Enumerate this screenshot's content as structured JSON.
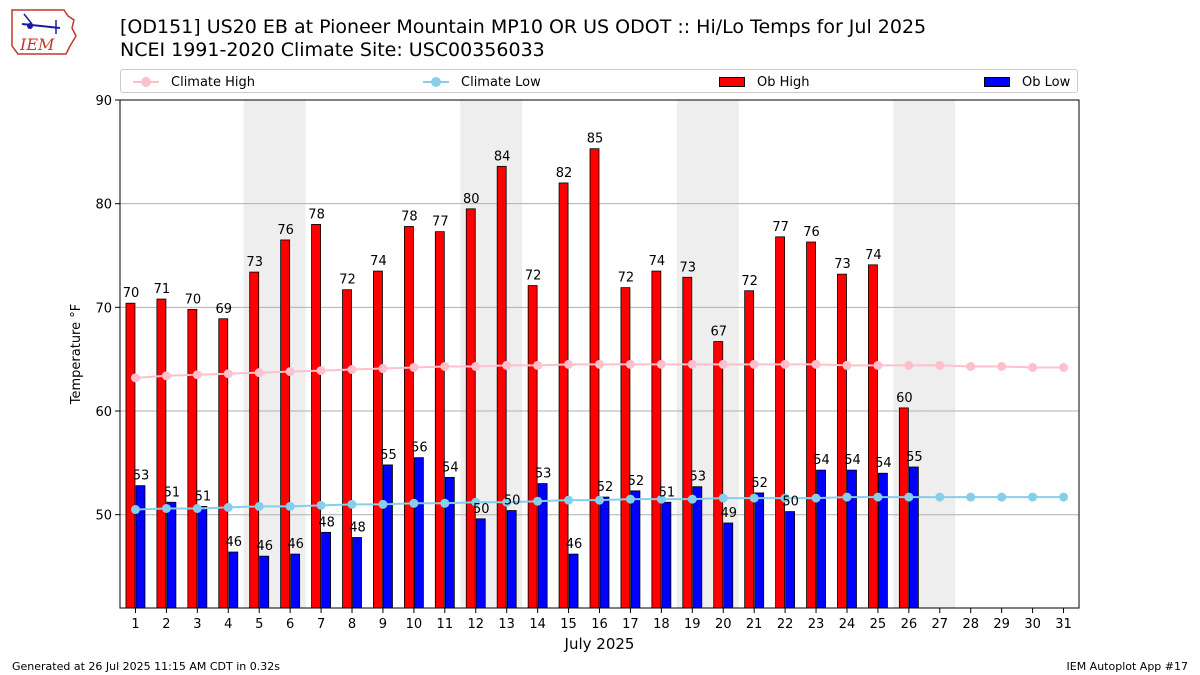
{
  "brand": {
    "logo_text": "IEM"
  },
  "chart_data": {
    "type": "bar",
    "title": "[OD151] US20 EB at Pioneer Mountain MP10 OR US ODOT :: Hi/Lo Temps for Jul 2025",
    "subtitle": "NCEI 1991-2020 Climate Site: USC00356033",
    "xlabel": "July 2025",
    "ylabel": "Temperature °F",
    "ylim": [
      41,
      90
    ],
    "yticks": [
      50,
      60,
      70,
      80,
      90
    ],
    "grid": true,
    "legend_placement": "top",
    "categories": [
      "1",
      "2",
      "3",
      "4",
      "5",
      "6",
      "7",
      "8",
      "9",
      "10",
      "11",
      "12",
      "13",
      "14",
      "15",
      "16",
      "17",
      "18",
      "19",
      "20",
      "21",
      "22",
      "23",
      "24",
      "25",
      "26",
      "27",
      "28",
      "29",
      "30",
      "31"
    ],
    "weekend_days": [
      5,
      6,
      12,
      13,
      19,
      20,
      26,
      27
    ],
    "series": [
      {
        "name": "Climate High",
        "kind": "line",
        "color": "#ffc0cb",
        "values": [
          63.2,
          63.4,
          63.5,
          63.6,
          63.7,
          63.8,
          63.9,
          64.0,
          64.1,
          64.2,
          64.3,
          64.3,
          64.4,
          64.4,
          64.5,
          64.5,
          64.5,
          64.5,
          64.5,
          64.5,
          64.5,
          64.5,
          64.5,
          64.4,
          64.4,
          64.4,
          64.4,
          64.3,
          64.3,
          64.2,
          64.2
        ]
      },
      {
        "name": "Climate Low",
        "kind": "line",
        "color": "#87ceeb",
        "values": [
          50.5,
          50.6,
          50.6,
          50.7,
          50.8,
          50.8,
          50.9,
          51.0,
          51.0,
          51.1,
          51.1,
          51.2,
          51.2,
          51.3,
          51.4,
          51.4,
          51.5,
          51.5,
          51.5,
          51.6,
          51.6,
          51.6,
          51.6,
          51.7,
          51.7,
          51.7,
          51.7,
          51.7,
          51.7,
          51.7,
          51.7
        ]
      },
      {
        "name": "Ob High",
        "kind": "bar",
        "color": "#ff0000",
        "values": [
          70.4,
          70.8,
          69.8,
          68.9,
          73.4,
          76.5,
          78.0,
          71.7,
          73.5,
          77.8,
          77.3,
          79.5,
          83.6,
          72.1,
          82.0,
          85.3,
          71.9,
          73.5,
          72.9,
          66.7,
          71.6,
          76.8,
          76.3,
          73.2,
          74.1,
          60.3,
          null,
          null,
          null,
          null,
          null
        ],
        "labels": [
          "70",
          "71",
          "70",
          "69",
          "73",
          "76",
          "78",
          "72",
          "74",
          "78",
          "77",
          "80",
          "84",
          "72",
          "82",
          "85",
          "72",
          "74",
          "73",
          "67",
          "72",
          "77",
          "76",
          "73",
          "74",
          "60",
          "",
          "",
          "",
          "",
          ""
        ]
      },
      {
        "name": "Ob Low",
        "kind": "bar",
        "color": "#0000ff",
        "values": [
          52.8,
          51.2,
          50.8,
          46.4,
          46.0,
          46.2,
          48.3,
          47.8,
          54.8,
          55.5,
          53.6,
          49.6,
          50.4,
          53.0,
          46.2,
          51.7,
          52.3,
          51.2,
          52.7,
          49.2,
          52.1,
          50.3,
          54.3,
          54.3,
          54.0,
          54.6,
          null,
          null,
          null,
          null,
          null
        ],
        "labels": [
          "53",
          "51",
          "51",
          "46",
          "46",
          "46",
          "48",
          "48",
          "55",
          "56",
          "54",
          "50",
          "50",
          "53",
          "46",
          "52",
          "52",
          "51",
          "53",
          "49",
          "52",
          "50",
          "54",
          "54",
          "54",
          "55",
          "",
          "",
          "",
          "",
          ""
        ]
      }
    ]
  },
  "footer": {
    "left": "Generated at 26 Jul 2025 11:15 AM CDT in 0.32s",
    "right": "IEM Autoplot App #17"
  }
}
